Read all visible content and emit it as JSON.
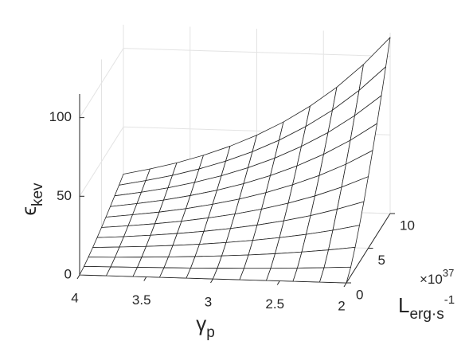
{
  "chart_data": {
    "type": "surface",
    "xlabel": {
      "symbol": "γ",
      "subscript": "p"
    },
    "ylabel": {
      "symbol": "L",
      "subscript": "erg·s",
      "superscript": "-1"
    },
    "zlabel": {
      "symbol": "ϵ",
      "subscript": "kev"
    },
    "y_scale": {
      "base": "×10",
      "exponent": "37"
    },
    "x": [
      4,
      3.8,
      3.6,
      3.4,
      3.2,
      3.0,
      2.8,
      2.6,
      2.4,
      2.2,
      2.0
    ],
    "y": [
      0,
      1,
      2,
      3,
      4,
      5,
      6,
      7,
      8,
      9,
      10
    ],
    "z": [
      [
        0,
        1.0,
        2.5,
        4.2,
        6.1,
        8.1,
        10.3,
        12.6,
        15.0,
        17.4,
        20
      ],
      [
        0,
        1.2,
        2.9,
        5.0,
        7.2,
        9.7,
        12.3,
        15.0,
        17.8,
        20.8,
        23.8
      ],
      [
        0,
        1.4,
        3.5,
        5.9,
        8.6,
        11.5,
        14.5,
        17.7,
        21.1,
        24.6,
        28.2
      ],
      [
        0,
        1.7,
        4.1,
        7.0,
        10.2,
        13.6,
        17.2,
        21.1,
        25.1,
        29.2,
        33.5
      ],
      [
        0,
        2.0,
        4.9,
        8.3,
        12.1,
        16.2,
        20.5,
        25.0,
        29.8,
        34.7,
        39.8
      ],
      [
        0,
        2.4,
        5.8,
        9.9,
        14.4,
        19.2,
        24.3,
        29.7,
        35.4,
        41.2,
        47.3
      ],
      [
        0,
        2.8,
        6.9,
        11.8,
        17.1,
        22.8,
        28.9,
        35.3,
        42.0,
        49.0,
        56.2
      ],
      [
        0,
        3.3,
        8.2,
        14.0,
        20.3,
        27.1,
        34.4,
        42.0,
        50.0,
        58.2,
        66.8
      ],
      [
        0,
        4.0,
        9.8,
        16.6,
        24.1,
        32.2,
        40.8,
        49.9,
        59.3,
        69.1,
        79.3
      ],
      [
        0,
        4.7,
        11.6,
        19.7,
        28.7,
        38.3,
        48.5,
        59.3,
        70.6,
        82.2,
        94.3
      ],
      [
        0,
        5.6,
        13.8,
        23.4,
        34.0,
        45.5,
        57.7,
        70.4,
        83.8,
        97.7,
        112
      ]
    ],
    "xlim": [
      2,
      4
    ],
    "xdir": "reverse",
    "xticks": [
      2,
      2.5,
      3,
      3.5,
      4
    ],
    "ylim": [
      0,
      10
    ],
    "yticks": [
      0,
      5,
      10
    ],
    "zlim": [
      0,
      115
    ],
    "zticks": [
      0,
      50,
      100
    ],
    "grid": true,
    "color": "#ffffff",
    "edge_color": "#222222"
  }
}
